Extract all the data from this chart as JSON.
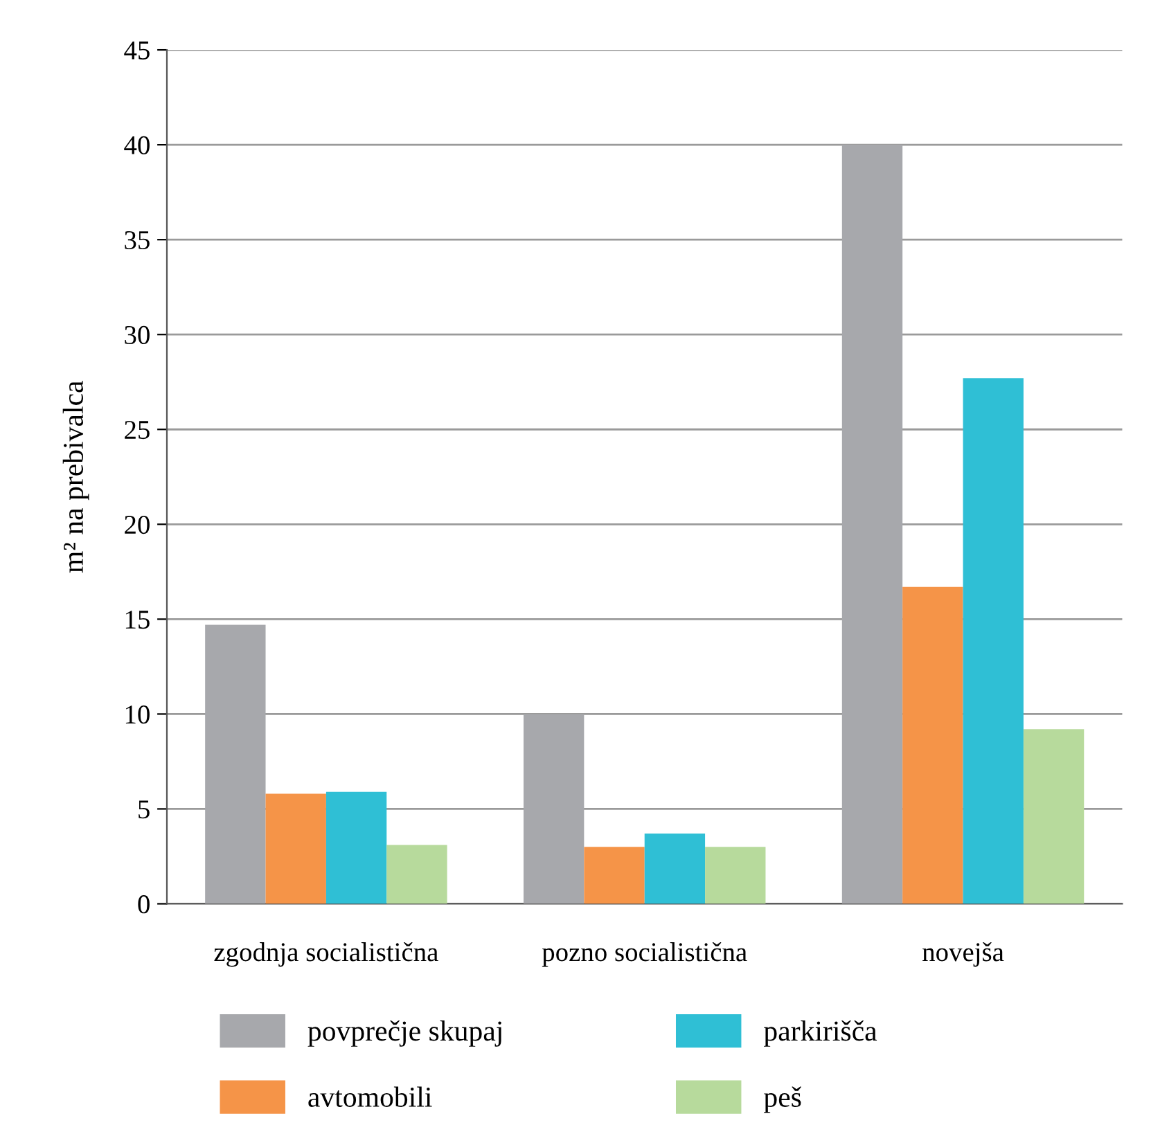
{
  "chart_data": {
    "type": "bar",
    "ylabel": "m² na prebivalca",
    "categories": [
      "zgodnja socialistična",
      "pozno socialistična",
      "novejša"
    ],
    "series": [
      {
        "name": "povprečje skupaj",
        "color": "#a7a8ac",
        "values": [
          14.7,
          10.0,
          40.0
        ]
      },
      {
        "name": "avtomobili",
        "color": "#f59448",
        "values": [
          5.8,
          3.0,
          16.7
        ]
      },
      {
        "name": "parkirišča",
        "color": "#2fbfd5",
        "values": [
          5.9,
          3.7,
          27.7
        ]
      },
      {
        "name": "peš",
        "color": "#b7da9c",
        "values": [
          3.1,
          3.0,
          9.2
        ]
      }
    ],
    "ylim": [
      0,
      45
    ],
    "yticks": [
      0,
      5,
      10,
      15,
      20,
      25,
      30,
      35,
      40,
      45
    ],
    "grid": "y",
    "legend": "bottom"
  }
}
